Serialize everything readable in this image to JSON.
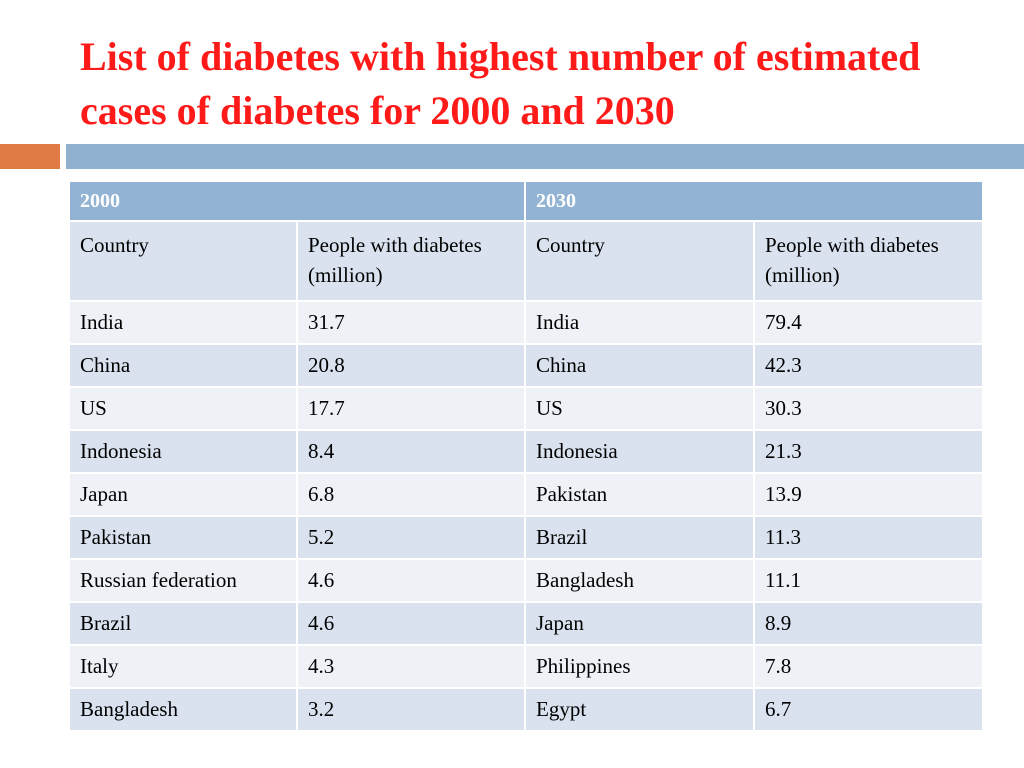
{
  "slide": {
    "title": "List of diabetes with highest number of estimated cases of diabetes for 2000 and 2030",
    "accent_colors": {
      "orange": "#e07b45",
      "blue": "#8fb0cf",
      "title": "#ff1a1a"
    }
  },
  "table": {
    "group_headers": [
      "2000",
      "2030"
    ],
    "column_headers": [
      "Country",
      "People with diabetes (million)",
      "Country",
      "People with diabetes (million)"
    ],
    "rows": [
      [
        "India",
        "31.7",
        "India",
        "79.4"
      ],
      [
        "China",
        "20.8",
        "China",
        "42.3"
      ],
      [
        "US",
        "17.7",
        "US",
        "30.3"
      ],
      [
        "Indonesia",
        "8.4",
        "Indonesia",
        "21.3"
      ],
      [
        "Japan",
        "6.8",
        "Pakistan",
        "13.9"
      ],
      [
        "Pakistan",
        "5.2",
        "Brazil",
        "11.3"
      ],
      [
        "Russian federation",
        "4.6",
        "Bangladesh",
        "11.1"
      ],
      [
        "Brazil",
        "4.6",
        "Japan",
        "8.9"
      ],
      [
        "Italy",
        "4.3",
        "Philippines",
        "7.8"
      ],
      [
        "Bangladesh",
        "3.2",
        "Egypt",
        "6.7"
      ]
    ]
  }
}
